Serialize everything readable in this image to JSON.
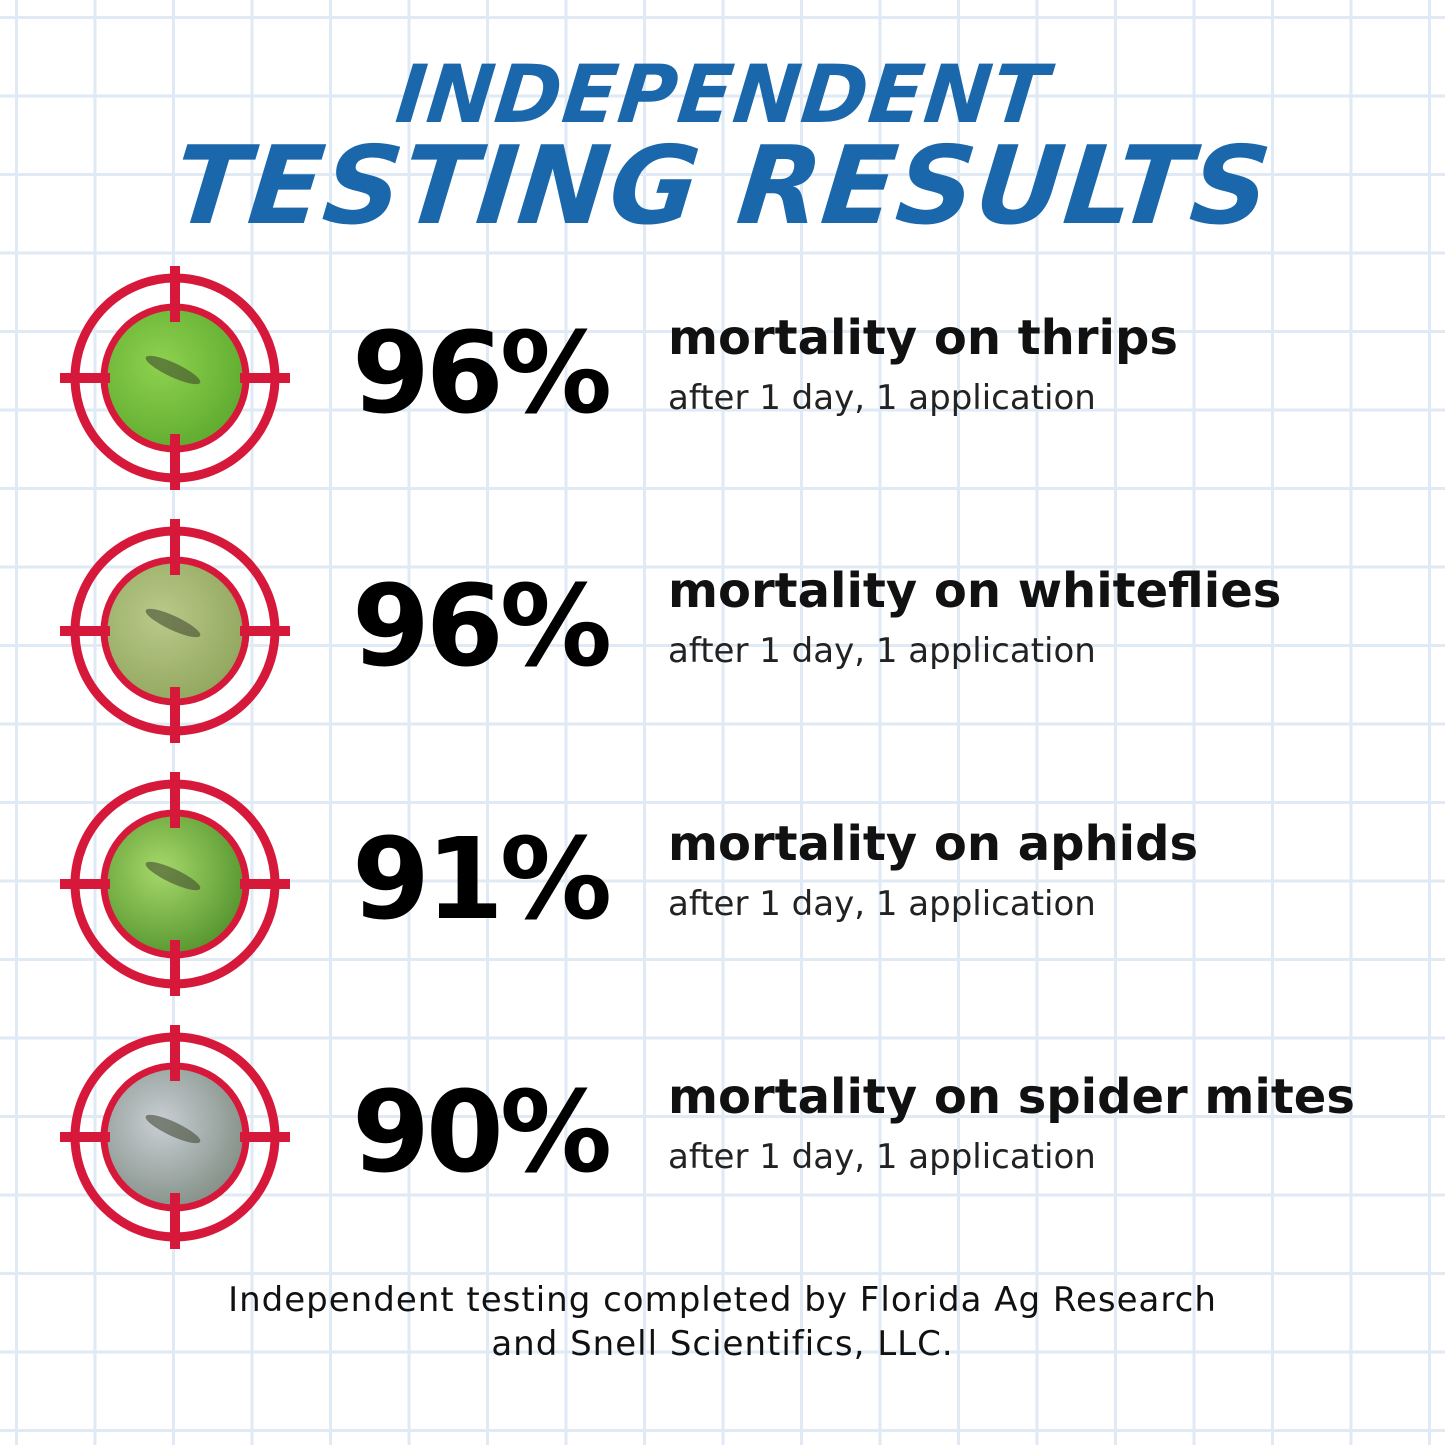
{
  "title": {
    "line1": "INDEPENDENT",
    "line2": "TESTING RESULTS"
  },
  "results": [
    {
      "percent": "96%",
      "label": "mortality on thrips",
      "detail": "after 1 day, 1 application",
      "photo": "thrips-on-leaf",
      "photo_colors": [
        "#8fd14f",
        "#5aa82d"
      ]
    },
    {
      "percent": "96%",
      "label": "mortality on whiteflies",
      "detail": "after 1 day, 1 application",
      "photo": "whiteflies-on-leaf",
      "photo_colors": [
        "#b9c98a",
        "#8ea45a"
      ]
    },
    {
      "percent": "91%",
      "label": "mortality on aphids",
      "detail": "after 1 day, 1 application",
      "photo": "aphids-on-leaf",
      "photo_colors": [
        "#a6d86a",
        "#4f8f2a"
      ]
    },
    {
      "percent": "90%",
      "label": "mortality on spider mites",
      "detail": "after 1 day, 1 application",
      "photo": "spider-mites-on-stem",
      "photo_colors": [
        "#c8cfd4",
        "#7e8a80"
      ]
    }
  ],
  "footer": {
    "line1": "Independent testing completed by Florida Ag Research",
    "line2": "and Snell Scientifics, LLC."
  },
  "colors": {
    "title": "#1b67ab",
    "target": "#d6193b",
    "grid": "#dfeaf4"
  }
}
